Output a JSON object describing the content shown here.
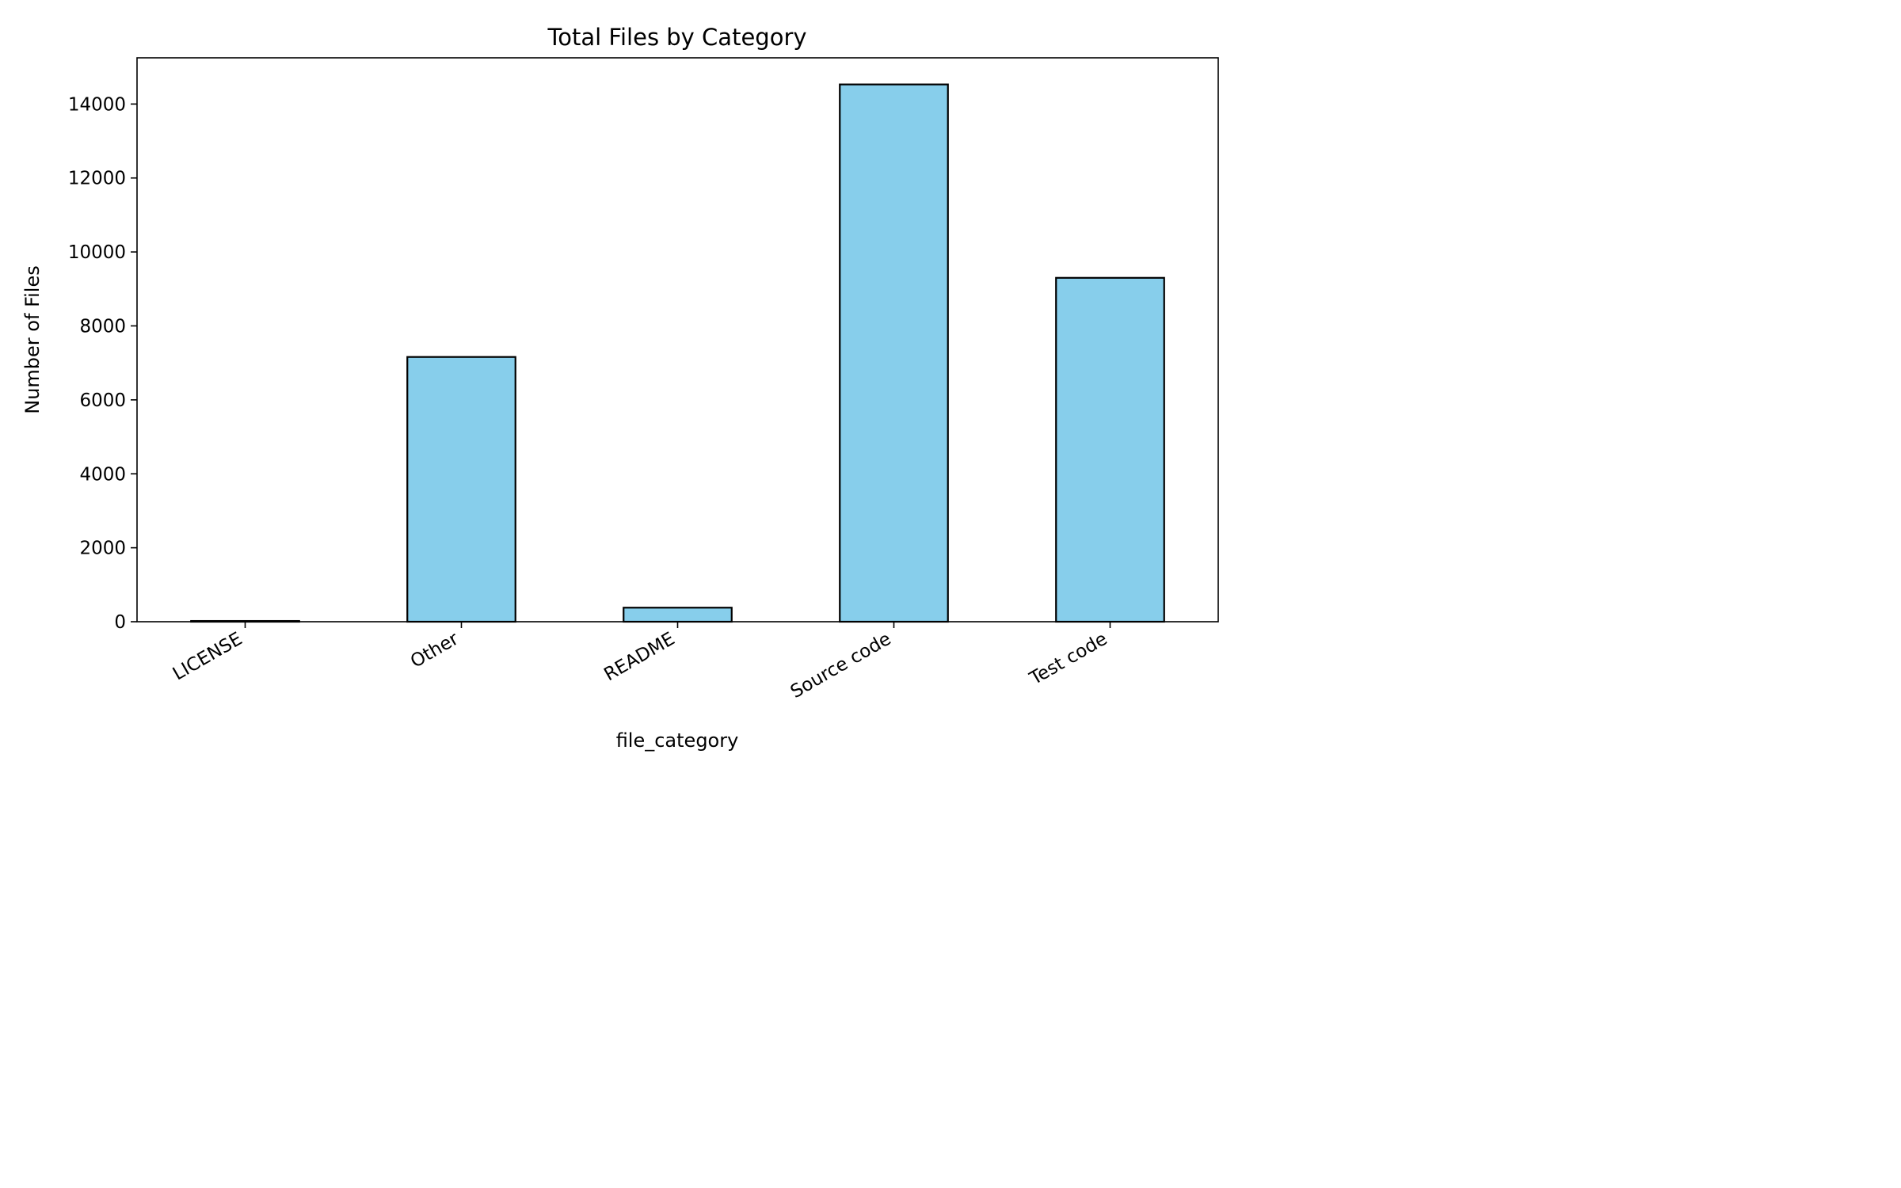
{
  "chart_data": {
    "type": "bar",
    "title": "Total Files by Category",
    "xlabel": "file_category",
    "ylabel": "Number of Files",
    "categories": [
      "LICENSE",
      "Other",
      "README",
      "Source code",
      "Test code"
    ],
    "values": [
      20,
      7160,
      380,
      14530,
      9300
    ],
    "ylim": [
      0,
      15250
    ],
    "yticks": [
      0,
      2000,
      4000,
      6000,
      8000,
      10000,
      12000,
      14000
    ],
    "grid": false,
    "legend": "none",
    "bar_color": "#87CEEB",
    "edge_color": "#000000"
  }
}
